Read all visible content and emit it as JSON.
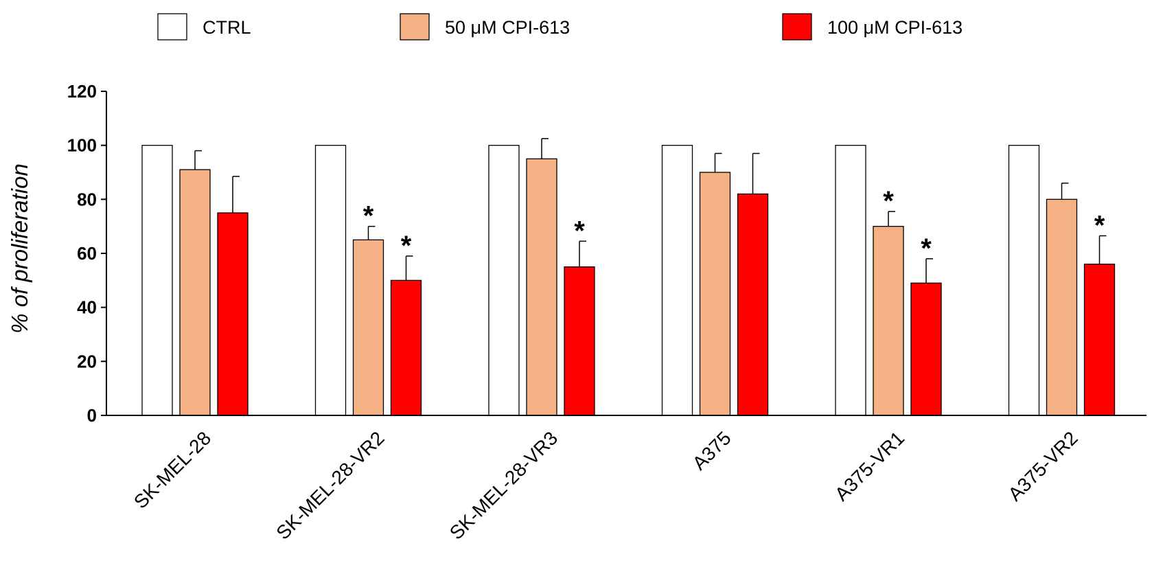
{
  "chart_data": {
    "type": "bar",
    "title": "",
    "xlabel": "",
    "ylabel": "% of proliferation",
    "ylim": [
      0,
      120
    ],
    "yticks": [
      0,
      20,
      40,
      60,
      80,
      100,
      120
    ],
    "grid": false,
    "legend_position": "top",
    "categories": [
      "SK-MEL-28",
      "SK-MEL-28-VR2",
      "SK-MEL-28-VR3",
      "A375",
      "A375-VR1",
      "A375-VR2"
    ],
    "series": [
      {
        "name": "CTRL",
        "color": "#ffffff",
        "values": [
          100,
          100,
          100,
          100,
          100,
          100
        ],
        "errors": [
          0,
          0,
          0,
          0,
          0,
          0
        ],
        "significant": [
          false,
          false,
          false,
          false,
          false,
          false
        ]
      },
      {
        "name": "50 μM CPI-613",
        "color": "#f4b183",
        "values": [
          91,
          65,
          95,
          90,
          70,
          80
        ],
        "errors": [
          7,
          5,
          7.5,
          7,
          5.5,
          6
        ],
        "significant": [
          false,
          true,
          false,
          false,
          true,
          false
        ]
      },
      {
        "name": "100 μM CPI-613",
        "color": "#ff0000",
        "values": [
          75,
          50,
          55,
          82,
          49,
          56
        ],
        "errors": [
          13.5,
          9,
          9.5,
          15,
          9,
          10.5
        ],
        "significant": [
          false,
          true,
          true,
          false,
          true,
          true
        ]
      }
    ],
    "significance_marker": "*"
  }
}
